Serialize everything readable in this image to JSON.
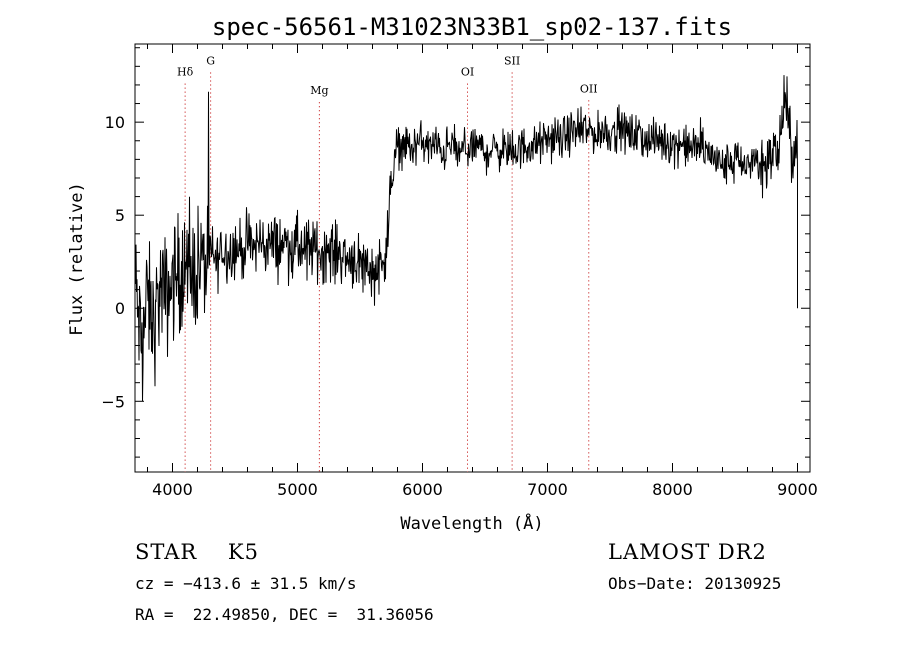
{
  "chart_data": {
    "type": "line",
    "title": "spec-56561-M31023N33B1_sp02-137.fits",
    "xlabel": "Wavelength (Å)",
    "ylabel": "Flux (relative)",
    "xlim": [
      3700,
      9100
    ],
    "ylim": [
      -8.8,
      14.2
    ],
    "xticks": [
      4000,
      5000,
      6000,
      7000,
      8000,
      9000
    ],
    "yticks": [
      -5,
      0,
      5,
      10
    ],
    "grid": false,
    "series": [
      {
        "color": "#000000",
        "x": [
          3700,
          3750,
          3800,
          3850,
          3900,
          3950,
          4000,
          4050,
          4100,
          4150,
          4200,
          4250,
          4300,
          4350,
          4400,
          4450,
          4500,
          4550,
          4600,
          4650,
          4700,
          4750,
          4800,
          4850,
          4900,
          4950,
          5000,
          5050,
          5100,
          5150,
          5200,
          5250,
          5300,
          5350,
          5400,
          5450,
          5500,
          5550,
          5600,
          5650,
          5700,
          5730,
          5760,
          5790,
          5820,
          5850,
          5900,
          5950,
          6000,
          6050,
          6100,
          6150,
          6200,
          6250,
          6300,
          6350,
          6400,
          6450,
          6500,
          6550,
          6600,
          6650,
          6700,
          6750,
          6800,
          6850,
          6900,
          6950,
          7000,
          7050,
          7100,
          7150,
          7200,
          7250,
          7300,
          7350,
          7400,
          7450,
          7500,
          7550,
          7600,
          7650,
          7700,
          7750,
          7800,
          7850,
          7900,
          7950,
          8000,
          8050,
          8100,
          8150,
          8200,
          8250,
          8300,
          8350,
          8400,
          8450,
          8500,
          8550,
          8600,
          8650,
          8700,
          8750,
          8800,
          8850,
          8900,
          8950,
          9000
        ],
        "y": [
          1.5,
          -2.0,
          0.5,
          -1.0,
          1.0,
          0.5,
          1.5,
          1.8,
          2.2,
          1.5,
          2.5,
          2.2,
          3.0,
          2.5,
          3.2,
          3.0,
          3.3,
          3.1,
          3.5,
          3.2,
          3.6,
          3.4,
          3.5,
          3.3,
          3.6,
          3.2,
          3.4,
          3.0,
          3.3,
          3.1,
          3.0,
          3.2,
          2.9,
          3.0,
          2.6,
          2.8,
          2.4,
          2.3,
          2.0,
          2.2,
          3.0,
          4.5,
          7.5,
          8.5,
          8.8,
          9.0,
          8.5,
          8.8,
          9.0,
          8.6,
          8.8,
          8.4,
          8.6,
          8.8,
          8.2,
          8.7,
          8.5,
          8.8,
          8.3,
          8.6,
          8.4,
          8.7,
          8.2,
          8.5,
          8.6,
          8.8,
          8.7,
          8.9,
          9.0,
          9.2,
          9.0,
          9.3,
          9.5,
          9.4,
          9.6,
          9.5,
          9.3,
          9.6,
          9.4,
          9.7,
          9.5,
          9.4,
          9.3,
          9.2,
          9.0,
          9.1,
          8.9,
          9.0,
          8.8,
          8.9,
          8.7,
          8.6,
          8.8,
          8.5,
          8.3,
          8.0,
          7.6,
          7.8,
          8.2,
          7.5,
          7.8,
          8.0,
          7.7,
          7.9,
          8.2,
          8.5,
          11.5,
          8.5,
          8.7
        ]
      }
    ],
    "annotations": [
      {
        "label": "Hδ",
        "x": 4101,
        "y": 12.5
      },
      {
        "label": "G",
        "x": 4305,
        "y": 13.1
      },
      {
        "label": "Mg",
        "x": 5175,
        "y": 11.5
      },
      {
        "label": "OI",
        "x": 6360,
        "y": 12.5
      },
      {
        "label": "SII",
        "x": 6717,
        "y": 13.1
      },
      {
        "label": "OII",
        "x": 7330,
        "y": 11.6
      }
    ]
  },
  "info": {
    "class": "STAR    K5",
    "survey": "LAMOST DR2",
    "cz": "cz = −413.6 ± 31.5 km/s",
    "obs_date": "Obs−Date: 20130925",
    "coords": "RA =  22.49850, DEC =  31.36056"
  }
}
